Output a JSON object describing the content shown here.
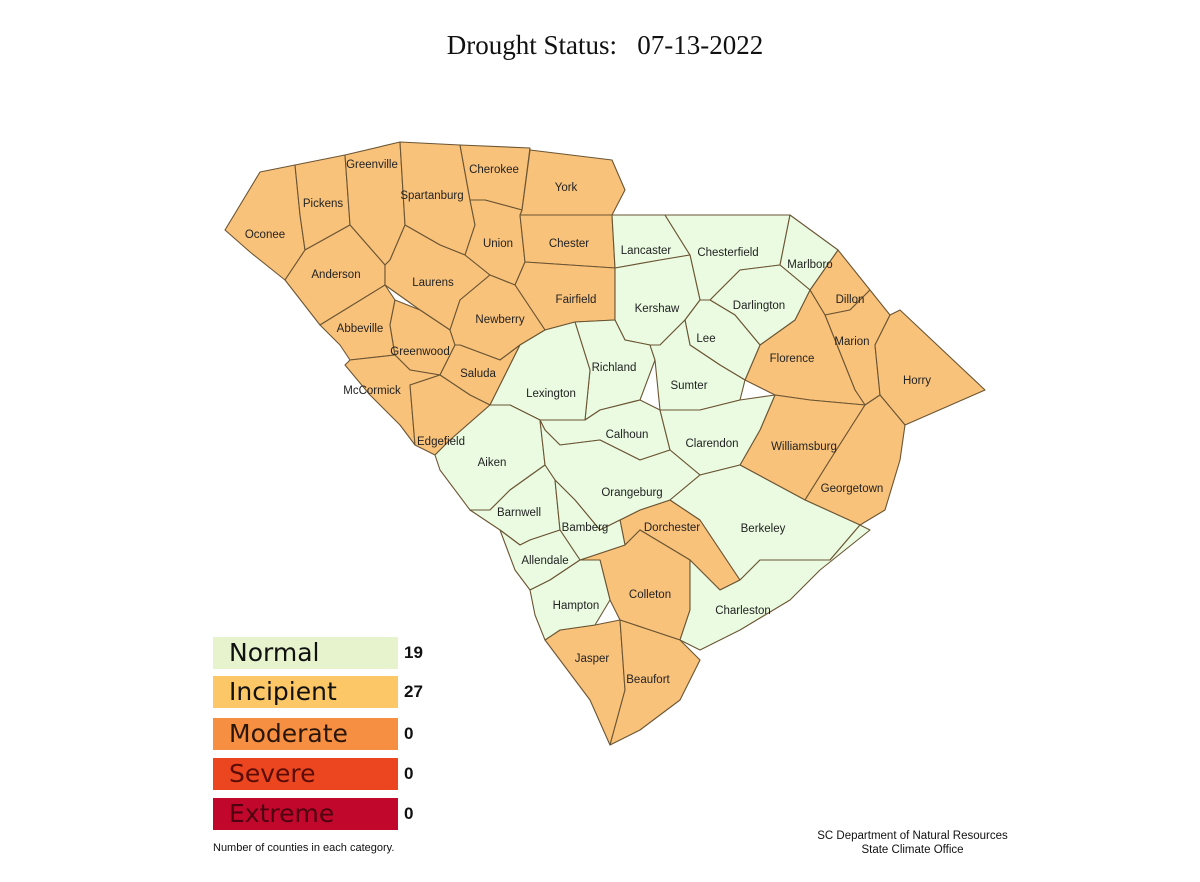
{
  "title": "Drought Status:   07-13-2022",
  "colors": {
    "Normal": "#eafbe1",
    "Incipient": "#f9c27b"
  },
  "legend": [
    {
      "label": "Normal",
      "count": "19",
      "color": "#e6f3cd",
      "text_color": "#111"
    },
    {
      "label": "Incipient",
      "count": "27",
      "color": "#fcc767",
      "text_color": "#111"
    },
    {
      "label": "Moderate",
      "count": "0",
      "color": "#f78f42",
      "text_color": "#2a1608"
    },
    {
      "label": "Severe",
      "count": "0",
      "color": "#ec4621",
      "text_color": "#5a0c06"
    },
    {
      "label": "Extreme",
      "count": "0",
      "color": "#c1082c",
      "text_color": "#4e0210"
    }
  ],
  "footnote": "Number of counties in each category.",
  "credit": {
    "line1": "SC Department of Natural Resources",
    "line2": "State Climate Office"
  },
  "counties": [
    {
      "name": "Oconee",
      "status": "Incipient"
    },
    {
      "name": "Pickens",
      "status": "Incipient"
    },
    {
      "name": "Greenville",
      "status": "Incipient"
    },
    {
      "name": "Spartanburg",
      "status": "Incipient"
    },
    {
      "name": "Cherokee",
      "status": "Incipient"
    },
    {
      "name": "York",
      "status": "Incipient"
    },
    {
      "name": "Anderson",
      "status": "Incipient"
    },
    {
      "name": "Laurens",
      "status": "Incipient"
    },
    {
      "name": "Union",
      "status": "Incipient"
    },
    {
      "name": "Chester",
      "status": "Incipient"
    },
    {
      "name": "Fairfield",
      "status": "Incipient"
    },
    {
      "name": "Abbeville",
      "status": "Incipient"
    },
    {
      "name": "Greenwood",
      "status": "Incipient"
    },
    {
      "name": "Newberry",
      "status": "Incipient"
    },
    {
      "name": "Saluda",
      "status": "Incipient"
    },
    {
      "name": "McCormick",
      "status": "Incipient"
    },
    {
      "name": "Edgefield",
      "status": "Incipient"
    },
    {
      "name": "Dillon",
      "status": "Incipient"
    },
    {
      "name": "Marion",
      "status": "Incipient"
    },
    {
      "name": "Horry",
      "status": "Incipient"
    },
    {
      "name": "Florence",
      "status": "Incipient"
    },
    {
      "name": "Williamsburg",
      "status": "Incipient"
    },
    {
      "name": "Georgetown",
      "status": "Incipient"
    },
    {
      "name": "Dorchester",
      "status": "Incipient"
    },
    {
      "name": "Colleton",
      "status": "Incipient"
    },
    {
      "name": "Jasper",
      "status": "Incipient"
    },
    {
      "name": "Beaufort",
      "status": "Incipient"
    },
    {
      "name": "Lancaster",
      "status": "Normal"
    },
    {
      "name": "Chesterfield",
      "status": "Normal"
    },
    {
      "name": "Marlboro",
      "status": "Normal"
    },
    {
      "name": "Kershaw",
      "status": "Normal"
    },
    {
      "name": "Darlington",
      "status": "Normal"
    },
    {
      "name": "Lee",
      "status": "Normal"
    },
    {
      "name": "Richland",
      "status": "Normal"
    },
    {
      "name": "Sumter",
      "status": "Normal"
    },
    {
      "name": "Lexington",
      "status": "Normal"
    },
    {
      "name": "Calhoun",
      "status": "Normal"
    },
    {
      "name": "Clarendon",
      "status": "Normal"
    },
    {
      "name": "Aiken",
      "status": "Normal"
    },
    {
      "name": "Orangeburg",
      "status": "Normal"
    },
    {
      "name": "Barnwell",
      "status": "Normal"
    },
    {
      "name": "Bamberg",
      "status": "Normal"
    },
    {
      "name": "Berkeley",
      "status": "Normal"
    },
    {
      "name": "Allendale",
      "status": "Normal"
    },
    {
      "name": "Hampton",
      "status": "Normal"
    },
    {
      "name": "Charleston",
      "status": "Normal"
    }
  ]
}
